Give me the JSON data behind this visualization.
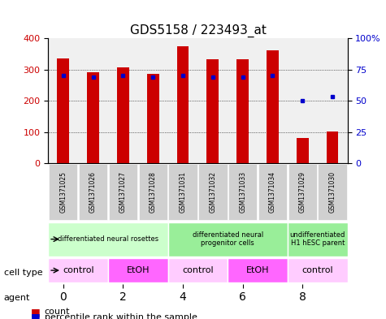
{
  "title": "GDS5158 / 223493_at",
  "samples": [
    "GSM1371025",
    "GSM1371026",
    "GSM1371027",
    "GSM1371028",
    "GSM1371031",
    "GSM1371032",
    "GSM1371033",
    "GSM1371034",
    "GSM1371029",
    "GSM1371030"
  ],
  "counts": [
    335,
    290,
    308,
    287,
    375,
    332,
    332,
    362,
    80,
    102
  ],
  "percentile_ranks": [
    70,
    69,
    70,
    69,
    70,
    69,
    69,
    70,
    50,
    53
  ],
  "bar_color": "#cc0000",
  "dot_color": "#0000cc",
  "ylim_left": [
    0,
    400
  ],
  "ylim_right": [
    0,
    100
  ],
  "yticks_left": [
    0,
    100,
    200,
    300,
    400
  ],
  "yticks_right": [
    0,
    25,
    50,
    75,
    100
  ],
  "cell_type_groups": [
    {
      "label": "differentiated neural rosettes",
      "start": 0,
      "end": 3,
      "color": "#ccffcc"
    },
    {
      "label": "differentiated neural\nprogenitor cells",
      "start": 4,
      "end": 7,
      "color": "#99ff99"
    },
    {
      "label": "undifferentiated\nH1 hESC parent",
      "start": 8,
      "end": 9,
      "color": "#99ff99"
    }
  ],
  "agent_groups": [
    {
      "label": "control",
      "start": 0,
      "end": 1,
      "color": "#ffccff"
    },
    {
      "label": "EtOH",
      "start": 2,
      "end": 3,
      "color": "#ff66ff"
    },
    {
      "label": "control",
      "start": 4,
      "end": 5,
      "color": "#ffccff"
    },
    {
      "label": "EtOH",
      "start": 6,
      "end": 7,
      "color": "#ff66ff"
    },
    {
      "label": "control",
      "start": 8,
      "end": 9,
      "color": "#ffccff"
    }
  ],
  "bg_color": "#ffffff",
  "grid_color": "#000000",
  "bar_width": 0.4
}
